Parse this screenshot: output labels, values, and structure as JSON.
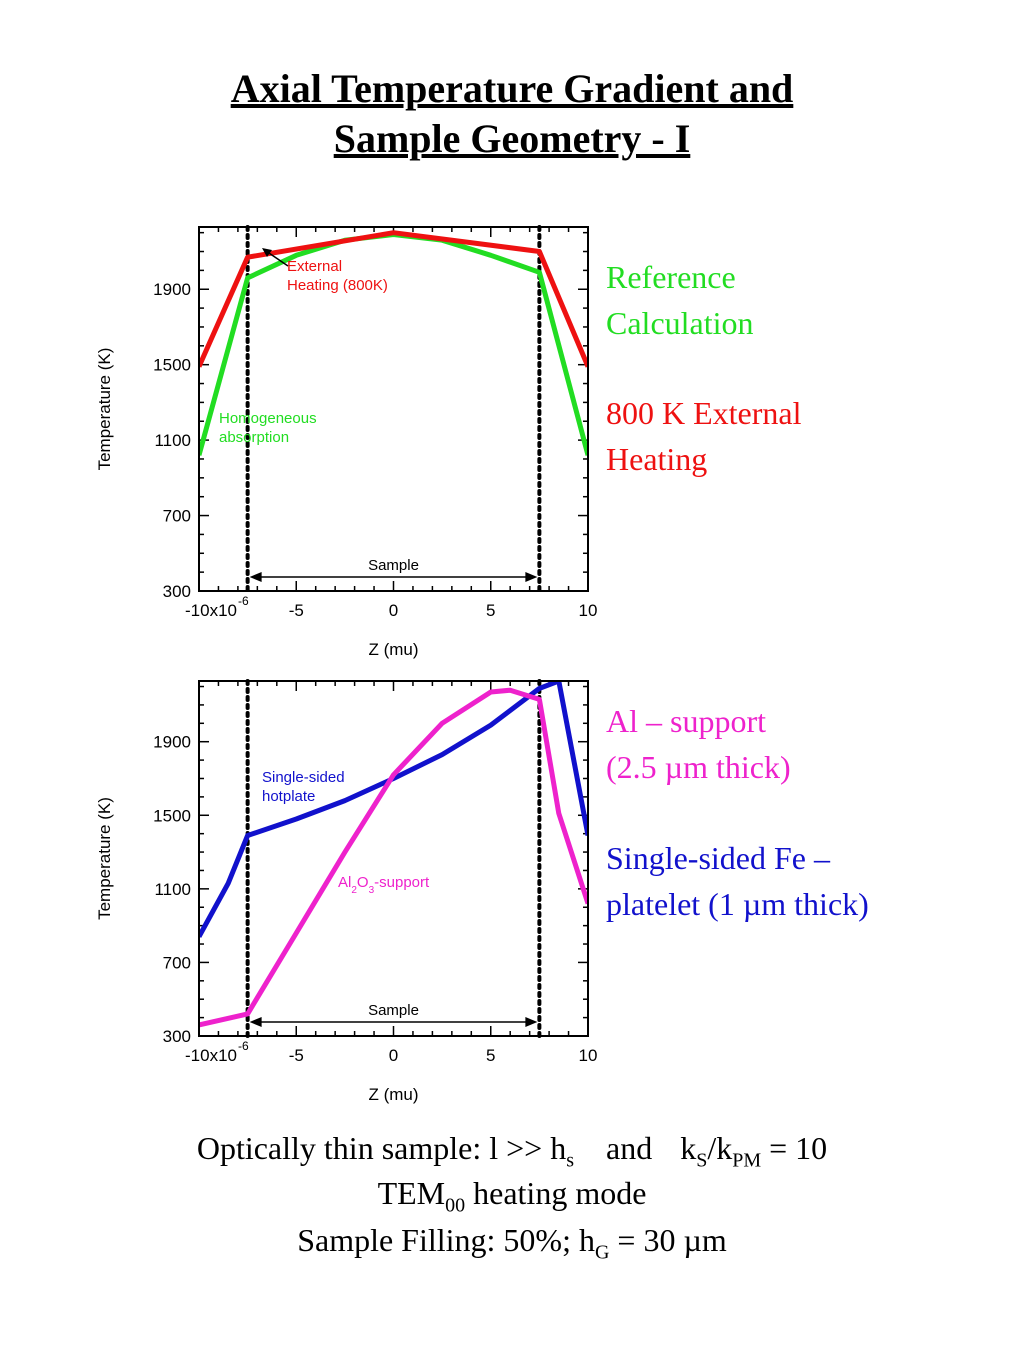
{
  "title": {
    "line1": "Axial Temperature Gradient and",
    "line2": "Sample Geometry - I"
  },
  "colors": {
    "green": "#22dd22",
    "red": "#ee1111",
    "magenta": "#ee22cc",
    "blue": "#1111cc"
  },
  "side_labels": {
    "reference_1": "Reference",
    "reference_2": "Calculation",
    "external_1": "800 K External",
    "external_2": "Heating",
    "al_1": "Al – support",
    "al_2": "(2.5 µm thick)",
    "fe_1": "Single-sided Fe –",
    "fe_2": "platelet (1 µm thick)"
  },
  "footer": {
    "l1_a": "Optically thin sample: l >> h",
    "l1_a_sub": "s",
    "l1_b": "and",
    "l1_c": "k",
    "l1_c_sub": "S",
    "l1_d": "/k",
    "l1_d_sub": "PM",
    "l1_e": " = 10",
    "l2_a": "TEM",
    "l2_a_sub": "00",
    "l2_b": " heating mode",
    "l3_a": "Sample Filling: 50%; h",
    "l3_a_sub": "G",
    "l3_b": " = 30 µm"
  },
  "chart_data": [
    {
      "type": "line",
      "xlabel": "Z (mu)",
      "ylabel": "Temperature (K)",
      "xlim": [
        -10,
        10
      ],
      "ylim": [
        300,
        2230
      ],
      "x_ticks": [
        -10,
        -5,
        0,
        5,
        10
      ],
      "x_tick_labels": [
        "-10x10",
        "-5",
        "0",
        "5",
        "10"
      ],
      "x_tick_exponent": "-6",
      "y_ticks": [
        300,
        700,
        1100,
        1500,
        1900
      ],
      "sample_bounds": [
        -7.5,
        7.5
      ],
      "sample_label": "Sample",
      "series": [
        {
          "color": "green",
          "x": [
            -10,
            -7.5,
            -5,
            -2.5,
            0,
            2.5,
            5,
            7.5,
            10
          ],
          "y": [
            1020,
            1960,
            2080,
            2160,
            2190,
            2160,
            2080,
            1990,
            1020
          ]
        },
        {
          "color": "red",
          "x": [
            -10,
            -7.5,
            0,
            7.5,
            10
          ],
          "y": [
            1490,
            2070,
            2200,
            2100,
            1490
          ]
        }
      ],
      "annotations": [
        {
          "text_1": "External",
          "text_2": "Heating (800K)",
          "color": "red"
        },
        {
          "text_1": "Homogeneous",
          "text_2": "absorption",
          "color": "green"
        }
      ]
    },
    {
      "type": "line",
      "xlabel": "Z (mu)",
      "ylabel": "Temperature (K)",
      "xlim": [
        -10,
        10
      ],
      "ylim": [
        300,
        2230
      ],
      "x_ticks": [
        -10,
        -5,
        0,
        5,
        10
      ],
      "x_tick_labels": [
        "-10x10",
        "-5",
        "0",
        "5",
        "10"
      ],
      "x_tick_exponent": "-6",
      "y_ticks": [
        300,
        700,
        1100,
        1500,
        1900
      ],
      "sample_bounds": [
        -7.5,
        7.5
      ],
      "sample_label": "Sample",
      "series": [
        {
          "color": "blue",
          "x": [
            -10,
            -8.5,
            -7.5,
            -5,
            -2.5,
            0,
            2.5,
            5,
            7.5,
            8.5,
            10
          ],
          "y": [
            840,
            1130,
            1390,
            1480,
            1580,
            1700,
            1830,
            1990,
            2190,
            2230,
            1390
          ]
        },
        {
          "color": "magenta",
          "x": [
            -10,
            -7.5,
            -5,
            -2.5,
            0,
            2.5,
            5,
            6,
            7.5,
            8.5,
            10
          ],
          "y": [
            360,
            420,
            860,
            1300,
            1720,
            2000,
            2170,
            2180,
            2130,
            1510,
            1020
          ]
        }
      ],
      "annotations": [
        {
          "text_1": "Single-sided",
          "text_2": "hotplate",
          "color": "blue"
        },
        {
          "text_1": "Al",
          "sub_1": "2",
          "text_2": "O",
          "sub_2": "3",
          "text_3": "-support",
          "color": "magenta"
        }
      ]
    }
  ]
}
